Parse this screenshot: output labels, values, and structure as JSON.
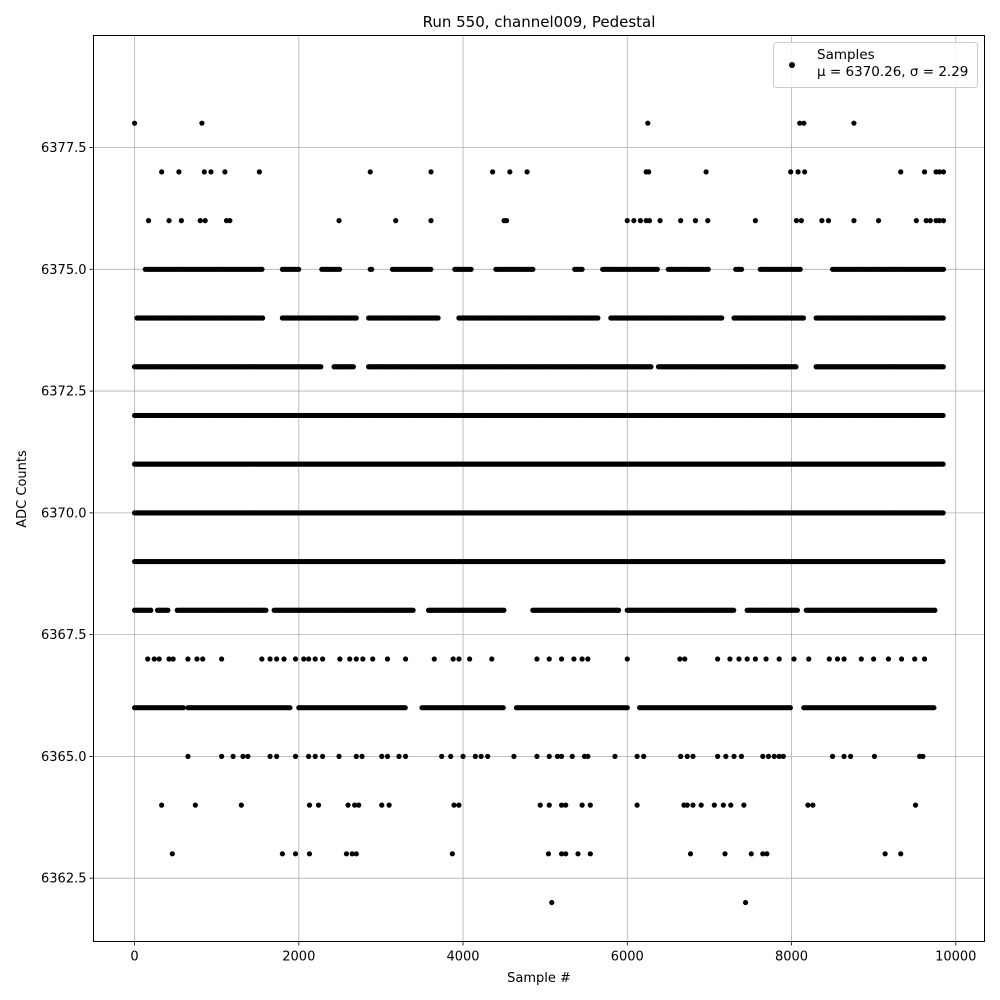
{
  "chart_data": {
    "type": "scatter",
    "title": "Run 550, channel009, Pedestal",
    "xlabel": "Sample #",
    "ylabel": "ADC Counts",
    "xlim": [
      -500,
      10350
    ],
    "ylim": [
      6361.2,
      6379.8
    ],
    "x_ticks": [
      0,
      2000,
      4000,
      6000,
      8000,
      10000
    ],
    "x_tick_labels": [
      "0",
      "2000",
      "4000",
      "6000",
      "8000",
      "10000"
    ],
    "y_ticks": [
      6362.5,
      6365.0,
      6367.5,
      6370.0,
      6372.5,
      6375.0,
      6377.5
    ],
    "y_tick_labels": [
      "6362.5",
      "6365.0",
      "6367.5",
      "6370.0",
      "6372.5",
      "6375.0",
      "6377.5"
    ],
    "grid": true,
    "legend_position": "top-right",
    "series": [
      {
        "name": "Samples",
        "stats_label": "μ = 6370.26, σ = 2.29",
        "color": "#000000",
        "marker": "circle",
        "x_range": [
          0,
          9850
        ],
        "levels": [
          {
            "y": 6378,
            "x": [
              0,
              820,
              6250,
              8100,
              8150,
              8760
            ]
          },
          {
            "y": 6377,
            "x": [
              330,
              540,
              850,
              930,
              1100,
              1520,
              2870,
              3610,
              4360,
              4570,
              4780,
              6230,
              6260,
              6960,
              7990,
              8080,
              8160,
              9330,
              9620,
              9760,
              9800,
              9850
            ]
          },
          {
            "y": 6376,
            "x": [
              170,
              420,
              570,
              800,
              860,
              1120,
              1160,
              2490,
              3180,
              3610,
              4500,
              4530,
              6000,
              6080,
              6160,
              6230,
              6270,
              6400,
              6650,
              6830,
              6980,
              7560,
              8060,
              8120,
              8370,
              8450,
              8760,
              9060,
              9520,
              9640,
              9690,
              9760,
              9800,
              9850
            ]
          },
          {
            "y": 6375,
            "x_spans": [
              [
                130,
                1560
              ],
              [
                1800,
                2000
              ],
              [
                2280,
                2500
              ],
              [
                2870,
                2900
              ],
              [
                3140,
                3610
              ],
              [
                3900,
                4100
              ],
              [
                4400,
                4860
              ],
              [
                5360,
                5450
              ],
              [
                5700,
                6380
              ],
              [
                6500,
                7000
              ],
              [
                7320,
                7400
              ],
              [
                7620,
                8120
              ],
              [
                8500,
                9850
              ]
            ]
          },
          {
            "y": 6374,
            "x_spans": [
              [
                30,
                1560
              ],
              [
                1800,
                2700
              ],
              [
                2850,
                3700
              ],
              [
                3950,
                5650
              ],
              [
                5800,
                7150
              ],
              [
                7300,
                8160
              ],
              [
                8300,
                9850
              ]
            ]
          },
          {
            "y": 6373,
            "x_spans": [
              [
                0,
                2280
              ],
              [
                2430,
                2680
              ],
              [
                2850,
                6300
              ],
              [
                6380,
                8060
              ],
              [
                8300,
                9850
              ]
            ]
          },
          {
            "y": 6372,
            "x_spans": [
              [
                0,
                9850
              ]
            ]
          },
          {
            "y": 6371,
            "x_spans": [
              [
                0,
                9850
              ]
            ]
          },
          {
            "y": 6370,
            "x_spans": [
              [
                0,
                9850
              ]
            ]
          },
          {
            "y": 6369,
            "x_spans": [
              [
                0,
                9850
              ]
            ]
          },
          {
            "y": 6368,
            "x_spans": [
              [
                0,
                200
              ],
              [
                280,
                420
              ],
              [
                520,
                1600
              ],
              [
                1700,
                3400
              ],
              [
                3580,
                4500
              ],
              [
                4850,
                5900
              ],
              [
                6000,
                7300
              ],
              [
                7460,
                8080
              ],
              [
                8180,
                9750
              ]
            ]
          },
          {
            "y": 6367,
            "x": [
              160,
              240,
              300,
              420,
              470,
              650,
              760,
              830,
              1060,
              1550,
              1650,
              1730,
              1820,
              1960,
              2060,
              2120,
              2200,
              2290,
              2500,
              2620,
              2700,
              2780,
              2900,
              3080,
              3300,
              3650,
              3880,
              3950,
              4080,
              4350,
              4900,
              5050,
              5200,
              5350,
              5450,
              5520,
              6000,
              6640,
              6700,
              7100,
              7250,
              7360,
              7460,
              7560,
              7690,
              7850,
              8030,
              8210,
              8460,
              8560,
              8640,
              8850,
              9000,
              9180,
              9340,
              9500,
              9620
            ]
          },
          {
            "y": 6366,
            "x_spans": [
              [
                0,
                600
              ],
              [
                650,
                1900
              ],
              [
                2000,
                3300
              ],
              [
                3500,
                4500
              ],
              [
                4650,
                6000
              ],
              [
                6150,
                8000
              ],
              [
                8150,
                9750
              ]
            ]
          },
          {
            "y": 6365,
            "x": [
              650,
              1060,
              1200,
              1320,
              1380,
              1650,
              1730,
              1960,
              2120,
              2200,
              2290,
              2490,
              2700,
              2770,
              3010,
              3080,
              3220,
              3300,
              3740,
              3850,
              4000,
              4150,
              4220,
              4300,
              4620,
              4900,
              5050,
              5150,
              5200,
              5330,
              5480,
              5520,
              5850,
              6120,
              6200,
              6650,
              6730,
              6800,
              7100,
              7200,
              7300,
              7390,
              7650,
              7720,
              7790,
              7850,
              7900,
              8500,
              8640,
              8720,
              9010,
              9560,
              9600
            ]
          },
          {
            "y": 6364,
            "x": [
              330,
              740,
              1300,
              2130,
              2240,
              2600,
              2680,
              2730,
              3010,
              3100,
              3890,
              3950,
              4940,
              5050,
              5200,
              5250,
              5450,
              5550,
              6120,
              6690,
              6730,
              6800,
              6900,
              7060,
              7170,
              7260,
              7420,
              8200,
              8260,
              9510
            ]
          },
          {
            "y": 6363,
            "x": [
              460,
              1800,
              1960,
              2130,
              2580,
              2650,
              2700,
              3870,
              5040,
              5200,
              5250,
              5400,
              5550,
              6770,
              7190,
              7510,
              7650,
              7700,
              9140,
              9330
            ]
          },
          {
            "y": 6362,
            "x": [
              5080,
              7440
            ]
          }
        ]
      }
    ]
  }
}
